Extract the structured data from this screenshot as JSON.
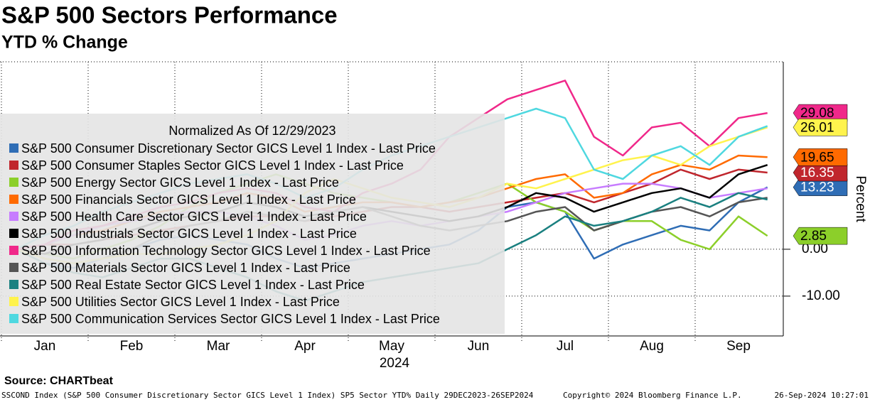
{
  "chart_data": {
    "type": "line",
    "title": "S&P 500 Sectors Performance",
    "subtitle": "YTD % Change",
    "y_label": "Percent",
    "legend_title": "Normalized As Of 12/29/2023",
    "year_label": "2024",
    "source": "Source: CHARTbeat",
    "footer": [
      "SSCOND Index (S&P 500 Consumer Discretionary Sector GICS Level 1 Index) SP5 Sector YTD%  Daily 29DEC2023-26SEP2024",
      "Copyright© 2024 Bloomberg Finance L.P.",
      "26-Sep-2024 10:27:01"
    ],
    "categories": [
      null,
      "Jan",
      null,
      null,
      "Feb",
      null,
      null,
      "Mar",
      null,
      null,
      "Apr",
      null,
      null,
      "May",
      null,
      null,
      "Jun",
      null,
      null,
      "Jul",
      null,
      null,
      "Aug",
      null,
      null,
      "Sep",
      null
    ],
    "ylim": [
      -18.5,
      40
    ],
    "yticks": [
      {
        "value": -10,
        "label": "-10.00"
      },
      {
        "value": 0,
        "label": "0.00"
      }
    ],
    "series": [
      {
        "name": "S&P 500 Consumer Discretionary Sector GICS Level 1 Index - Last Price",
        "color": "#2f6db5",
        "end_label": true,
        "values": [
          0,
          -3,
          -4,
          -2,
          0,
          2,
          3,
          2,
          1,
          -2,
          -4,
          -3,
          -2,
          -1,
          0,
          1,
          4,
          9,
          10,
          8,
          -2,
          1,
          3,
          5,
          4,
          10,
          13.23
        ]
      },
      {
        "name": "S&P 500 Consumer Staples Sector GICS Level 1 Index - Last Price",
        "color": "#c0262d",
        "end_label": true,
        "values": [
          0,
          1,
          1,
          2,
          3,
          4,
          5,
          6,
          7,
          7,
          6,
          7,
          8,
          9,
          9,
          8,
          9,
          10,
          11,
          12,
          10,
          12,
          14,
          17,
          15,
          17,
          16.35
        ]
      },
      {
        "name": "S&P 500 Energy Sector GICS Level 1 Index - Last Price",
        "color": "#8ccf2a",
        "end_label": true,
        "values": [
          0,
          -1,
          -2,
          0,
          2,
          5,
          9,
          12,
          14,
          16,
          14,
          12,
          11,
          10,
          9,
          10,
          12,
          14,
          10,
          8,
          4,
          6,
          6,
          2,
          0,
          7,
          2.85
        ]
      },
      {
        "name": "S&P 500 Financials Sector GICS Level 1 Index - Last Price",
        "color": "#ff6a00",
        "end_label": true,
        "values": [
          0,
          1,
          3,
          4,
          6,
          8,
          9,
          10,
          12,
          11,
          8,
          9,
          10,
          10,
          9,
          10,
          11,
          13,
          15,
          16,
          11,
          12,
          16,
          18,
          17,
          20,
          19.65
        ]
      },
      {
        "name": "S&P 500 Health Care Sector GICS Level 1 Index - Last Price",
        "color": "#c77cff",
        "values": [
          0,
          1,
          3,
          5,
          6,
          7,
          8,
          8,
          7,
          5,
          2,
          3,
          5,
          6,
          5,
          6,
          7,
          8,
          10,
          12,
          13,
          14,
          14,
          13,
          11,
          12,
          13
        ]
      },
      {
        "name": "S&P 500 Industrials Sector GICS Level 1 Index - Last Price",
        "color": "#000000",
        "values": [
          0,
          -1,
          1,
          2,
          4,
          6,
          7,
          8,
          10,
          9,
          7,
          8,
          9,
          8,
          7,
          6,
          7,
          9,
          12,
          11,
          8,
          10,
          12,
          13,
          11,
          16,
          18
        ]
      },
      {
        "name": "S&P 500 Information Technology Sector GICS Level 1 Index - Last Price",
        "color": "#f0288a",
        "end_label": true,
        "values": [
          0,
          1,
          4,
          5,
          7,
          9,
          10,
          12,
          13,
          12,
          9,
          8,
          12,
          14,
          17,
          24,
          28,
          32,
          34,
          36,
          24,
          20,
          26,
          27,
          22,
          28,
          29.08
        ]
      },
      {
        "name": "S&P 500 Materials Sector GICS Level 1 Index - Last Price",
        "color": "#555555",
        "values": [
          0,
          -2,
          -3,
          -2,
          0,
          3,
          5,
          6,
          8,
          7,
          6,
          8,
          9,
          7,
          5,
          4,
          5,
          6,
          8,
          9,
          4,
          6,
          8,
          9,
          7,
          10,
          11
        ]
      },
      {
        "name": "S&P 500 Real Estate Sector GICS Level 1 Index - Last Price",
        "color": "#1a8080",
        "values": [
          0,
          -3,
          -5,
          -6,
          -4,
          -2,
          -2,
          -4,
          -6,
          -9,
          -11,
          -9,
          -7,
          -6,
          -5,
          -4,
          -3,
          0,
          3,
          7,
          5,
          6,
          8,
          11,
          9,
          12,
          10.6
        ]
      },
      {
        "name": "S&P 500 Utilities Sector GICS Level 1 Index - Last Price",
        "color": "#fff34d",
        "end_label": true,
        "values": [
          0,
          -2,
          -3,
          -2,
          -1,
          -1,
          0,
          1,
          3,
          6,
          12,
          15,
          13,
          11,
          10,
          9,
          11,
          14,
          13,
          15,
          17,
          19,
          20,
          18,
          22,
          24,
          26.01
        ]
      },
      {
        "name": "S&P 500 Communication Services Sector GICS Level 1 Index - Last Price",
        "color": "#4fd8e0",
        "values": [
          0,
          3,
          5,
          8,
          10,
          12,
          14,
          15,
          16,
          14,
          11,
          13,
          17,
          20,
          22,
          24,
          26,
          28,
          30,
          28,
          17,
          15,
          20,
          22,
          18,
          24,
          26.3
        ]
      }
    ]
  }
}
